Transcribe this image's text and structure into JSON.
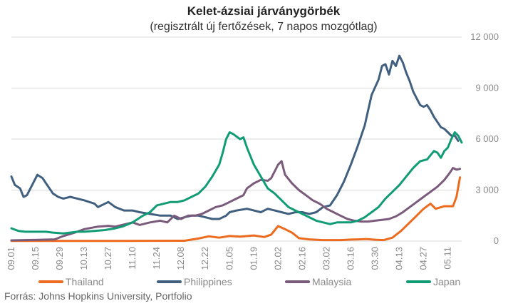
{
  "chart_data": {
    "type": "line",
    "title": "Kelet-ázsiai járványgörbék",
    "subtitle": "(regisztrált új fertőzések, 7 napos mozgótlag)",
    "source": "Forrás: Johns Hopkins University, Portfolio",
    "xlabel": "",
    "ylabel": "",
    "ylim": [
      0,
      12000
    ],
    "y_ticks": [
      {
        "value": 0,
        "label": "0"
      },
      {
        "value": 3000,
        "label": "3 000"
      },
      {
        "value": 6000,
        "label": "6 000"
      },
      {
        "value": 9000,
        "label": "9 000"
      },
      {
        "value": 12000,
        "label": "12 000"
      }
    ],
    "x_ticks": [
      {
        "day": 0,
        "label": "09.01"
      },
      {
        "day": 14,
        "label": "09.15"
      },
      {
        "day": 28,
        "label": "09.29"
      },
      {
        "day": 42,
        "label": "10.13"
      },
      {
        "day": 56,
        "label": "10.27"
      },
      {
        "day": 70,
        "label": "11.10"
      },
      {
        "day": 84,
        "label": "11.24"
      },
      {
        "day": 98,
        "label": "12.08"
      },
      {
        "day": 112,
        "label": "12.22"
      },
      {
        "day": 126,
        "label": "01.05"
      },
      {
        "day": 140,
        "label": "01.19"
      },
      {
        "day": 154,
        "label": "02.02"
      },
      {
        "day": 168,
        "label": "02.16"
      },
      {
        "day": 182,
        "label": "03.02"
      },
      {
        "day": 196,
        "label": "03.16"
      },
      {
        "day": 210,
        "label": "03.30"
      },
      {
        "day": 224,
        "label": "04.13"
      },
      {
        "day": 238,
        "label": "04.27"
      },
      {
        "day": 252,
        "label": "05.11"
      }
    ],
    "x_max_day": 260,
    "grid": true,
    "legend_position": "bottom",
    "series": [
      {
        "name": "Thailand",
        "color": "#ec6b1e",
        "points": [
          [
            0,
            10
          ],
          [
            60,
            10
          ],
          [
            100,
            20
          ],
          [
            108,
            150
          ],
          [
            114,
            280
          ],
          [
            120,
            200
          ],
          [
            126,
            300
          ],
          [
            132,
            260
          ],
          [
            140,
            330
          ],
          [
            146,
            240
          ],
          [
            150,
            380
          ],
          [
            154,
            880
          ],
          [
            158,
            700
          ],
          [
            162,
            500
          ],
          [
            166,
            170
          ],
          [
            172,
            100
          ],
          [
            180,
            60
          ],
          [
            190,
            60
          ],
          [
            196,
            90
          ],
          [
            200,
            100
          ],
          [
            205,
            120
          ],
          [
            210,
            80
          ],
          [
            215,
            60
          ],
          [
            220,
            200
          ],
          [
            225,
            600
          ],
          [
            230,
            1100
          ],
          [
            234,
            1500
          ],
          [
            238,
            1900
          ],
          [
            242,
            2200
          ],
          [
            245,
            1900
          ],
          [
            250,
            2050
          ],
          [
            255,
            2050
          ],
          [
            257,
            2600
          ],
          [
            259,
            3750
          ]
        ]
      },
      {
        "name": "Philippines",
        "color": "#41607f",
        "points": [
          [
            0,
            3800
          ],
          [
            2,
            3300
          ],
          [
            5,
            3100
          ],
          [
            7,
            2600
          ],
          [
            9,
            2700
          ],
          [
            13,
            3500
          ],
          [
            15,
            3900
          ],
          [
            18,
            3700
          ],
          [
            20,
            3400
          ],
          [
            24,
            2800
          ],
          [
            27,
            2600
          ],
          [
            30,
            2500
          ],
          [
            34,
            2600
          ],
          [
            38,
            2500
          ],
          [
            42,
            2400
          ],
          [
            48,
            2200
          ],
          [
            50,
            2000
          ],
          [
            56,
            2300
          ],
          [
            60,
            2000
          ],
          [
            65,
            1800
          ],
          [
            70,
            1800
          ],
          [
            74,
            1700
          ],
          [
            80,
            1600
          ],
          [
            86,
            1500
          ],
          [
            92,
            1500
          ],
          [
            96,
            1300
          ],
          [
            100,
            1400
          ],
          [
            104,
            1500
          ],
          [
            108,
            1500
          ],
          [
            112,
            1400
          ],
          [
            116,
            1300
          ],
          [
            120,
            1300
          ],
          [
            124,
            1500
          ],
          [
            126,
            1700
          ],
          [
            130,
            1800
          ],
          [
            136,
            1900
          ],
          [
            140,
            1800
          ],
          [
            144,
            1700
          ],
          [
            148,
            1900
          ],
          [
            152,
            1800
          ],
          [
            156,
            1700
          ],
          [
            160,
            1600
          ],
          [
            164,
            1700
          ],
          [
            168,
            1700
          ],
          [
            172,
            1600
          ],
          [
            176,
            1700
          ],
          [
            180,
            2000
          ],
          [
            184,
            2100
          ],
          [
            188,
            2700
          ],
          [
            192,
            3500
          ],
          [
            196,
            4500
          ],
          [
            200,
            5600
          ],
          [
            204,
            6800
          ],
          [
            206,
            7700
          ],
          [
            208,
            8600
          ],
          [
            212,
            9500
          ],
          [
            214,
            10300
          ],
          [
            216,
            10400
          ],
          [
            218,
            9800
          ],
          [
            220,
            10600
          ],
          [
            222,
            10300
          ],
          [
            224,
            10900
          ],
          [
            226,
            10500
          ],
          [
            228,
            9900
          ],
          [
            230,
            9400
          ],
          [
            232,
            8800
          ],
          [
            234,
            8400
          ],
          [
            236,
            8000
          ],
          [
            238,
            7900
          ],
          [
            240,
            8000
          ],
          [
            242,
            7700
          ],
          [
            244,
            7300
          ],
          [
            246,
            7000
          ],
          [
            248,
            6700
          ],
          [
            250,
            6600
          ],
          [
            252,
            6400
          ],
          [
            254,
            6200
          ],
          [
            256,
            6200
          ],
          [
            258,
            5900
          ]
        ]
      },
      {
        "name": "Malaysia",
        "color": "#7a5b7c",
        "points": [
          [
            0,
            40
          ],
          [
            15,
            70
          ],
          [
            25,
            100
          ],
          [
            30,
            300
          ],
          [
            36,
            480
          ],
          [
            42,
            700
          ],
          [
            50,
            850
          ],
          [
            56,
            900
          ],
          [
            60,
            850
          ],
          [
            66,
            1000
          ],
          [
            70,
            1100
          ],
          [
            74,
            950
          ],
          [
            80,
            1100
          ],
          [
            86,
            1200
          ],
          [
            90,
            1100
          ],
          [
            94,
            1500
          ],
          [
            98,
            1300
          ],
          [
            102,
            1500
          ],
          [
            106,
            1500
          ],
          [
            110,
            1600
          ],
          [
            114,
            1800
          ],
          [
            118,
            2000
          ],
          [
            122,
            2100
          ],
          [
            126,
            2300
          ],
          [
            130,
            2500
          ],
          [
            134,
            2700
          ],
          [
            136,
            3100
          ],
          [
            140,
            3400
          ],
          [
            144,
            3600
          ],
          [
            148,
            3550
          ],
          [
            150,
            3700
          ],
          [
            152,
            4100
          ],
          [
            154,
            4500
          ],
          [
            156,
            4700
          ],
          [
            158,
            3900
          ],
          [
            162,
            3400
          ],
          [
            166,
            3000
          ],
          [
            170,
            2700
          ],
          [
            174,
            2400
          ],
          [
            178,
            2200
          ],
          [
            182,
            1900
          ],
          [
            186,
            1700
          ],
          [
            190,
            1500
          ],
          [
            194,
            1300
          ],
          [
            198,
            1200
          ],
          [
            202,
            1150
          ],
          [
            206,
            1150
          ],
          [
            210,
            1200
          ],
          [
            214,
            1250
          ],
          [
            218,
            1300
          ],
          [
            222,
            1450
          ],
          [
            226,
            1700
          ],
          [
            230,
            2000
          ],
          [
            234,
            2300
          ],
          [
            238,
            2600
          ],
          [
            242,
            2900
          ],
          [
            246,
            3200
          ],
          [
            250,
            3600
          ],
          [
            253,
            4000
          ],
          [
            255,
            4300
          ],
          [
            257,
            4200
          ],
          [
            259,
            4250
          ]
        ]
      },
      {
        "name": "Japan",
        "color": "#129c76",
        "points": [
          [
            0,
            750
          ],
          [
            4,
            600
          ],
          [
            8,
            550
          ],
          [
            14,
            550
          ],
          [
            20,
            550
          ],
          [
            24,
            500
          ],
          [
            30,
            450
          ],
          [
            34,
            500
          ],
          [
            38,
            550
          ],
          [
            42,
            550
          ],
          [
            48,
            600
          ],
          [
            54,
            650
          ],
          [
            60,
            750
          ],
          [
            64,
            850
          ],
          [
            70,
            1100
          ],
          [
            76,
            1500
          ],
          [
            80,
            1700
          ],
          [
            84,
            2100
          ],
          [
            88,
            2200
          ],
          [
            92,
            2300
          ],
          [
            96,
            2300
          ],
          [
            100,
            2400
          ],
          [
            104,
            2600
          ],
          [
            108,
            2800
          ],
          [
            112,
            3200
          ],
          [
            116,
            3800
          ],
          [
            120,
            4500
          ],
          [
            122,
            5200
          ],
          [
            124,
            6000
          ],
          [
            126,
            6400
          ],
          [
            128,
            6300
          ],
          [
            132,
            6000
          ],
          [
            134,
            6100
          ],
          [
            136,
            5500
          ],
          [
            140,
            4500
          ],
          [
            144,
            3800
          ],
          [
            148,
            3100
          ],
          [
            152,
            2800
          ],
          [
            156,
            2400
          ],
          [
            160,
            2000
          ],
          [
            164,
            1800
          ],
          [
            168,
            1600
          ],
          [
            172,
            1400
          ],
          [
            176,
            1200
          ],
          [
            180,
            1100
          ],
          [
            184,
            1000
          ],
          [
            188,
            1100
          ],
          [
            192,
            1100
          ],
          [
            196,
            1100
          ],
          [
            200,
            1200
          ],
          [
            204,
            1400
          ],
          [
            208,
            1700
          ],
          [
            212,
            2000
          ],
          [
            216,
            2500
          ],
          [
            220,
            2900
          ],
          [
            224,
            3300
          ],
          [
            228,
            3800
          ],
          [
            232,
            4300
          ],
          [
            236,
            4700
          ],
          [
            240,
            4800
          ],
          [
            244,
            5300
          ],
          [
            246,
            5200
          ],
          [
            248,
            4900
          ],
          [
            250,
            5300
          ],
          [
            252,
            5500
          ],
          [
            254,
            6000
          ],
          [
            256,
            6400
          ],
          [
            258,
            6200
          ],
          [
            260,
            5800
          ]
        ]
      }
    ]
  }
}
